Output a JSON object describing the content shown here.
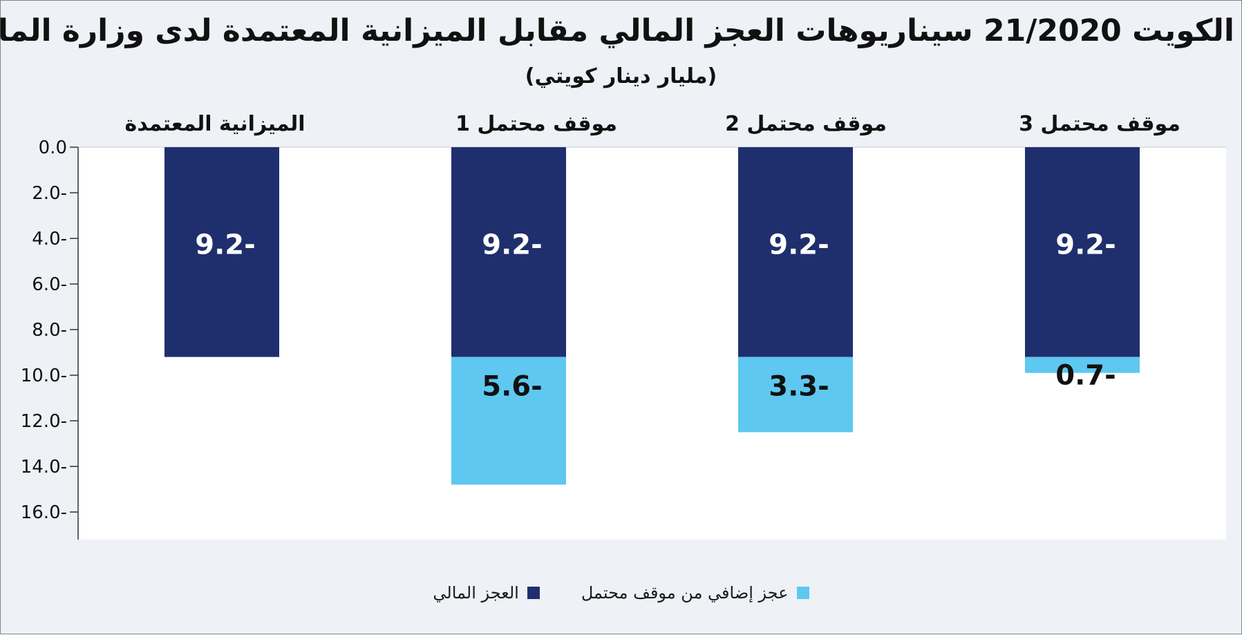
{
  "chart_data": {
    "type": "bar",
    "stacked": true,
    "title": "الكويت 21/2020 سيناريوهات العجز المالي مقابل الميزانية المعتمدة لدى وزارة المالية",
    "subtitle": "(مليار دينار كويتي)",
    "categories": [
      "الميزانية المعتمدة",
      "موقف محتمل 1",
      "موقف محتمل 2",
      "موقف محتمل 3"
    ],
    "series": [
      {
        "name": "العجز المالي",
        "values": [
          -9.2,
          -9.2,
          -9.2,
          -9.2
        ],
        "color": "#1f2f6e",
        "value_labels": [
          "9.2-",
          "9.2-",
          "9.2-",
          "9.2-"
        ]
      },
      {
        "name": "عجز إضافي من موقف محتمل",
        "values": [
          0,
          -5.6,
          -3.3,
          -0.7
        ],
        "color": "#5ec8f1",
        "value_labels": [
          "",
          "5.6-",
          "3.3-",
          "0.7-"
        ]
      }
    ],
    "y_ticks": [
      "0.0",
      "2.0-",
      "4.0-",
      "6.0-",
      "8.0-",
      "10.0-",
      "12.0-",
      "14.0-",
      "16.0-"
    ],
    "ylim": [
      -16,
      0
    ],
    "legend_position": "bottom",
    "grid": false
  }
}
